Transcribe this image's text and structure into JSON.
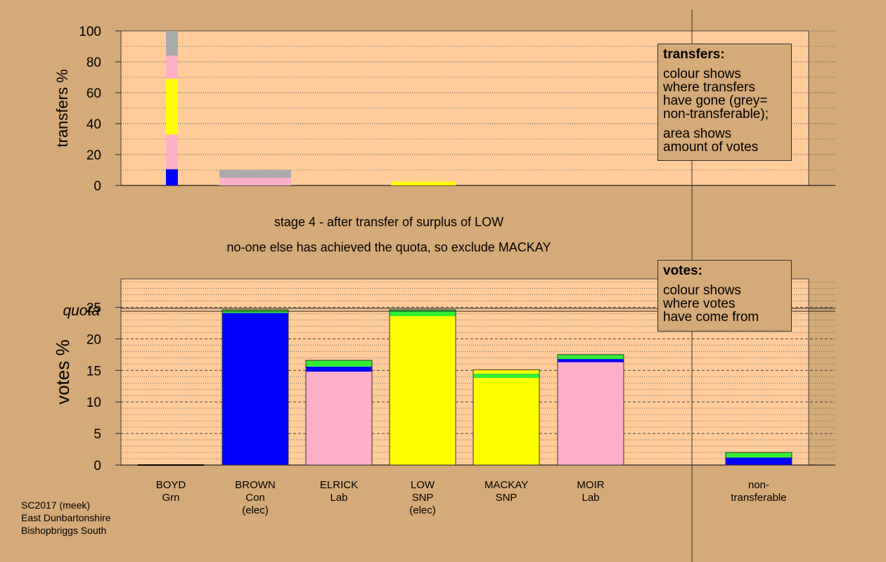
{
  "colors": {
    "background": "#d4aa78",
    "plot_bg": "#ffcc99",
    "Con": "#0000ff",
    "Grn": "#33ee33",
    "Lab": "#ffb0c8",
    "SNP": "#ffff00",
    "nontransferable": "#aaaaaa"
  },
  "titles": {
    "line1": "stage 4 - after transfer of surplus of LOW",
    "line2": "no-one else has achieved the quota, so exclude MACKAY"
  },
  "legend_transfers": {
    "title": "transfers:",
    "lines1": [
      "colour shows",
      "where transfers",
      "have gone (grey=",
      "non-transferable);"
    ],
    "lines2": [
      "area shows",
      "amount of votes"
    ]
  },
  "legend_votes": {
    "title": "votes:",
    "lines1": [
      "colour shows",
      "where votes",
      "have come from"
    ]
  },
  "footer": [
    "SC2017 (meek)",
    "East Dunbartonshire",
    "Bishopbriggs South"
  ],
  "chart_data": [
    {
      "type": "bar",
      "name": "transfers",
      "ylabel": "transfers %",
      "ylim": [
        0,
        100
      ],
      "yticks": [
        0,
        20,
        40,
        60,
        80,
        100
      ],
      "bars": [
        {
          "index": 0,
          "segments": [
            {
              "party": "Con",
              "value": 10.5
            },
            {
              "party": "Lab",
              "value": 22.5
            },
            {
              "party": "SNP",
              "value": 36
            },
            {
              "party": "Lab",
              "value": 15
            },
            {
              "party": "nontransferable",
              "value": 16
            }
          ]
        },
        {
          "index": 1,
          "segments": [
            {
              "party": "Lab",
              "value": 3
            },
            {
              "party": "Lab",
              "value": 2
            },
            {
              "party": "nontransferable",
              "value": 5
            }
          ]
        },
        {
          "index": 3,
          "segments": [
            {
              "party": "SNP",
              "value": 2.5
            }
          ]
        }
      ]
    },
    {
      "type": "bar",
      "name": "votes",
      "ylabel": "votes %",
      "ylim": [
        0,
        29.5
      ],
      "yticks": [
        0,
        5,
        10,
        15,
        20,
        25
      ],
      "quota": 24.6,
      "quota_label": "quota",
      "categories": [
        {
          "name": "BOYD",
          "party": "Grn",
          "note": ""
        },
        {
          "name": "BROWN",
          "party": "Con",
          "note": "(elec)"
        },
        {
          "name": "ELRICK",
          "party": "Lab",
          "note": ""
        },
        {
          "name": "LOW",
          "party": "SNP",
          "note": "(elec)"
        },
        {
          "name": "MACKAY",
          "party": "SNP",
          "note": ""
        },
        {
          "name": "MOIR",
          "party": "Lab",
          "note": ""
        }
      ],
      "nontransferable_label": [
        "non-",
        "transferable"
      ],
      "bars": [
        {
          "index": 0,
          "segments": []
        },
        {
          "index": 1,
          "segments": [
            {
              "party": "Con",
              "value": 24.1
            },
            {
              "party": "Grn",
              "value": 0.5
            }
          ]
        },
        {
          "index": 2,
          "segments": [
            {
              "party": "Lab",
              "value": 14.8
            },
            {
              "party": "Con",
              "value": 0.8
            },
            {
              "party": "Grn",
              "value": 1.0
            }
          ]
        },
        {
          "index": 3,
          "segments": [
            {
              "party": "SNP",
              "value": 23.6
            },
            {
              "party": "Grn",
              "value": 1.0
            }
          ]
        },
        {
          "index": 4,
          "segments": [
            {
              "party": "SNP",
              "value": 13.8
            },
            {
              "party": "Grn",
              "value": 0.7
            },
            {
              "party": "SNP",
              "value": 0.6
            }
          ]
        },
        {
          "index": 5,
          "segments": [
            {
              "party": "Lab",
              "value": 16.3
            },
            {
              "party": "Con",
              "value": 0.5
            },
            {
              "party": "Grn",
              "value": 0.7
            }
          ]
        },
        {
          "index": 7,
          "segments": [
            {
              "party": "Con",
              "value": 1.2
            },
            {
              "party": "Grn",
              "value": 0.8
            }
          ]
        }
      ]
    }
  ]
}
